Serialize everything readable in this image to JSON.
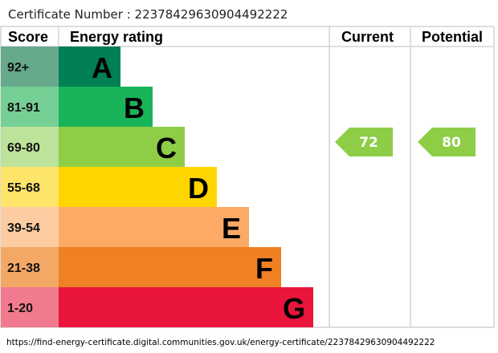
{
  "certificate_label": "Certificate Number : 2237842963090449222 2",
  "chart_data": {
    "type": "bar",
    "headers": {
      "score": "Score",
      "rating": "Energy rating",
      "current": "Current",
      "potential": "Potential"
    },
    "bands": [
      {
        "letter": "A",
        "range": "92+",
        "color": "#008054",
        "light": "#66a98b"
      },
      {
        "letter": "B",
        "range": "81-91",
        "color": "#19b459",
        "light": "#76cf95"
      },
      {
        "letter": "C",
        "range": "69-80",
        "color": "#8dce46",
        "light": "#bde29a"
      },
      {
        "letter": "D",
        "range": "55-68",
        "color": "#ffd500",
        "light": "#ffe46a"
      },
      {
        "letter": "E",
        "range": "39-54",
        "color": "#fcaa65",
        "light": "#fdcca2"
      },
      {
        "letter": "F",
        "range": "21-38",
        "color": "#ef8023",
        "light": "#f4a866"
      },
      {
        "letter": "G",
        "range": "1-20",
        "color": "#e9153b",
        "light": "#f27a8e"
      }
    ],
    "current": {
      "value": 72,
      "band": "C"
    },
    "potential": {
      "value": 80,
      "band": "C"
    }
  },
  "footer_url": "https://find-energy-certificate.digital.communities.gov.uk/energy-certificate/2237842963090449222 2"
}
